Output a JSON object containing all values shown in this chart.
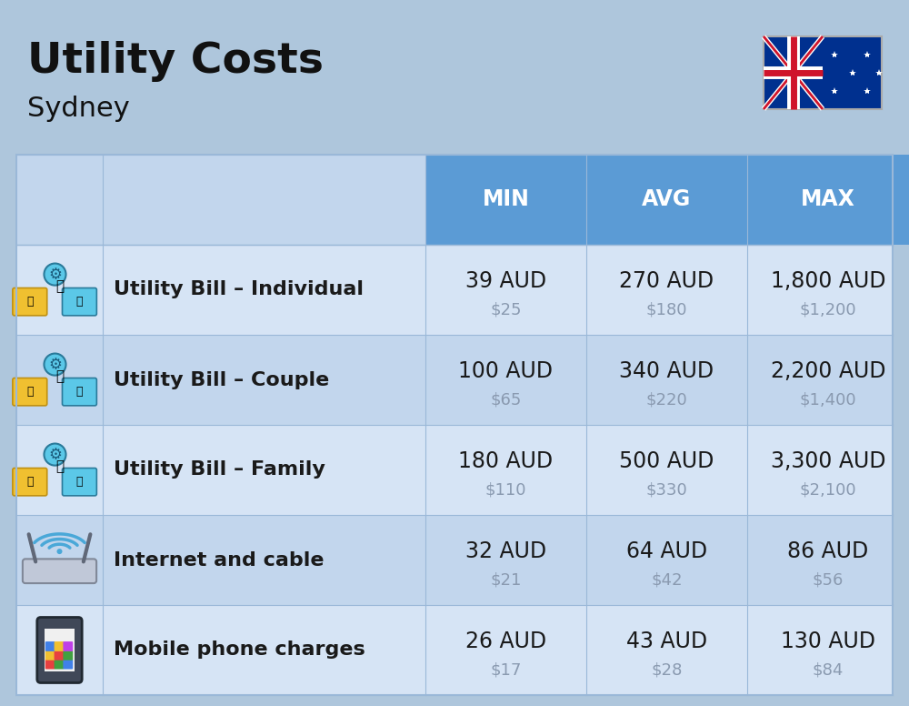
{
  "title": "Utility Costs",
  "subtitle": "Sydney",
  "background_color": "#aec6dc",
  "header_bg_color": "#5b9bd5",
  "header_text_color": "#ffffff",
  "row_bg_light": "#d6e4f5",
  "row_bg_dark": "#c2d6ed",
  "cell_line_color": "#9ab8d8",
  "title_color": "#111111",
  "main_text_color": "#1a1a1a",
  "sub_text_color": "#8a9ab0",
  "columns": [
    "MIN",
    "AVG",
    "MAX"
  ],
  "rows": [
    {
      "label": "Utility Bill – Individual",
      "min_aud": "39 AUD",
      "min_usd": "$25",
      "avg_aud": "270 AUD",
      "avg_usd": "$180",
      "max_aud": "1,800 AUD",
      "max_usd": "$1,200"
    },
    {
      "label": "Utility Bill – Couple",
      "min_aud": "100 AUD",
      "min_usd": "$65",
      "avg_aud": "340 AUD",
      "avg_usd": "$220",
      "max_aud": "2,200 AUD",
      "max_usd": "$1,400"
    },
    {
      "label": "Utility Bill – Family",
      "min_aud": "180 AUD",
      "min_usd": "$110",
      "avg_aud": "500 AUD",
      "avg_usd": "$330",
      "max_aud": "3,300 AUD",
      "max_usd": "$2,100"
    },
    {
      "label": "Internet and cable",
      "min_aud": "32 AUD",
      "min_usd": "$21",
      "avg_aud": "64 AUD",
      "avg_usd": "$42",
      "max_aud": "86 AUD",
      "max_usd": "$56"
    },
    {
      "label": "Mobile phone charges",
      "min_aud": "26 AUD",
      "min_usd": "$17",
      "avg_aud": "43 AUD",
      "avg_usd": "$28",
      "max_aud": "130 AUD",
      "max_usd": "$84"
    }
  ],
  "figsize": [
    10.0,
    7.76
  ]
}
